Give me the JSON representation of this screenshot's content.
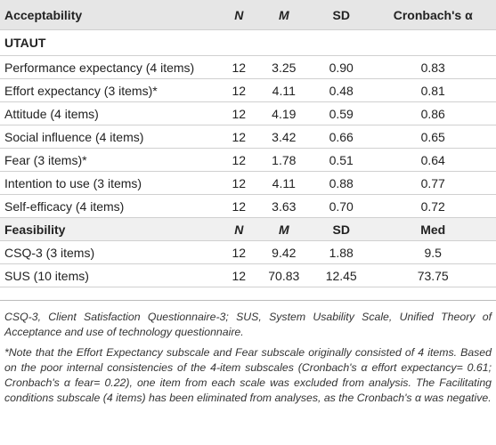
{
  "table": {
    "header": [
      "Acceptability",
      "N",
      "M",
      "SD",
      "Cronbach's α"
    ],
    "rows": [
      {
        "section": "UTAUT"
      },
      [
        "Performance expectancy (4 items)",
        "12",
        "3.25",
        "0.90",
        "0.83"
      ],
      [
        "Effort expectancy (3 items)*",
        "12",
        "4.11",
        "0.48",
        "0.81"
      ],
      [
        "Attitude (4 items)",
        "12",
        "4.19",
        "0.59",
        "0.86"
      ],
      [
        "Social influence (4 items)",
        "12",
        "3.42",
        "0.66",
        "0.65"
      ],
      [
        "Fear (3 items)*",
        "12",
        "1.78",
        "0.51",
        "0.64"
      ],
      [
        "Intention to use (3 items)",
        "12",
        "4.11",
        "0.88",
        "0.77"
      ],
      [
        "Self-efficacy (4 items)",
        "12",
        "3.63",
        "0.70",
        "0.72"
      ],
      {
        "subheader": [
          "Feasibility",
          "N",
          "M",
          "SD",
          "Med"
        ]
      },
      [
        "CSQ-3 (3 items)",
        "12",
        "9.42",
        "1.88",
        "9.5"
      ],
      [
        "SUS (10 items)",
        "12",
        "70.83",
        "12.45",
        "73.75"
      ]
    ]
  },
  "notes": [
    "CSQ-3, Client Satisfaction Questionnaire-3; SUS, System Usability Scale, Unified Theory of Acceptance and use of technology questionnaire.",
    "*Note that the Effort Expectancy subscale and Fear subscale originally consisted of 4 items. Based on the poor internal consistencies of the 4-item subscales (Cronbach's α effort expectancy= 0.61; Cronbach's α fear= 0.22), one item from each scale was excluded from analysis. The Facilitating conditions subscale (4 items) has been eliminated from analyses, as the Cronbach's α was negative."
  ]
}
